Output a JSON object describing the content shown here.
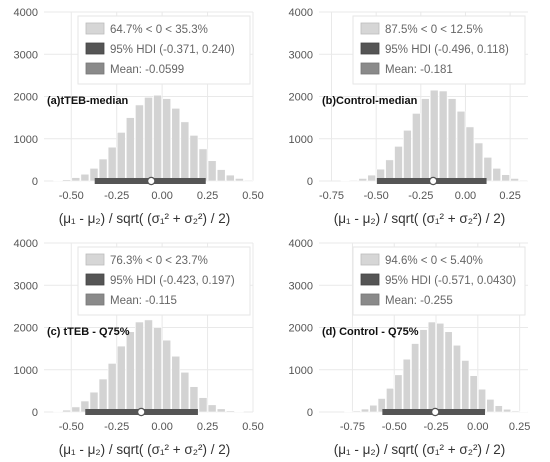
{
  "chart_data": [
    {
      "type": "bar",
      "panel_label": "(a)tTEB-median",
      "xlabel": "(μ₁ - μ₂) / sqrt( (σ₁² + σ₂²) / 2)",
      "ylim": [
        0,
        4000
      ],
      "y_ticks": [
        "0",
        "1000",
        "2000",
        "3000",
        "4000"
      ],
      "xlim": [
        -0.65,
        0.5
      ],
      "x_ticks": [
        -0.5,
        -0.25,
        0.0,
        0.25,
        0.5
      ],
      "x_tick_labels": [
        "-0.50",
        "-0.25",
        "0.00",
        "0.25",
        "0.50"
      ],
      "bin_start": -0.6,
      "bin_width": 0.05,
      "values": [
        10,
        30,
        80,
        160,
        300,
        520,
        800,
        1150,
        1500,
        1800,
        1980,
        2030,
        1950,
        1720,
        1400,
        1080,
        760,
        480,
        270,
        140,
        60,
        20,
        8
      ],
      "hdi": [
        -0.371,
        0.24
      ],
      "mean": -0.0599,
      "legend": [
        "64.7% < 0 < 35.3%",
        "95% HDI (-0.371, 0.240)",
        "Mean: -0.0599"
      ],
      "colors": {
        "bar": "#d3d3d3",
        "hdi": "#555555",
        "mean": "#8a8a8a"
      }
    },
    {
      "type": "bar",
      "panel_label": "(b)Control-median",
      "xlabel": "(μ₁ - μ₂) / sqrt( (σ₁² + σ₂²) / 2)",
      "ylim": [
        0,
        4000
      ],
      "y_ticks": [
        "0",
        "1000",
        "2000",
        "3000",
        "4000"
      ],
      "xlim": [
        -0.82,
        0.35
      ],
      "x_ticks": [
        -0.75,
        -0.5,
        -0.25,
        0.0,
        0.25
      ],
      "x_tick_labels": [
        "-0.75",
        "-0.50",
        "-0.25",
        "0.00",
        "0.25"
      ],
      "bin_start": -0.7,
      "bin_width": 0.05,
      "values": [
        8,
        20,
        60,
        140,
        280,
        500,
        820,
        1200,
        1600,
        1950,
        2150,
        2130,
        1950,
        1650,
        1280,
        900,
        560,
        300,
        150,
        60,
        20,
        8
      ],
      "hdi": [
        -0.496,
        0.118
      ],
      "mean": -0.181,
      "legend": [
        "87.5% < 0 < 12.5%",
        "95% HDI (-0.496, 0.118)",
        "Mean: -0.181"
      ],
      "colors": {
        "bar": "#d3d3d3",
        "hdi": "#555555",
        "mean": "#8a8a8a"
      }
    },
    {
      "type": "bar",
      "panel_label": "(c) tTEB - Q75%",
      "xlabel": "(μ₁ - μ₂) / sqrt( (σ₁² + σ₂²) / 2)",
      "ylim": [
        0,
        4000
      ],
      "y_ticks": [
        "0",
        "1000",
        "2000",
        "3000",
        "4000"
      ],
      "xlim": [
        -0.65,
        0.5
      ],
      "x_ticks": [
        -0.5,
        -0.25,
        0.0,
        0.25,
        0.5
      ],
      "x_tick_labels": [
        "-0.50",
        "-0.25",
        "0.00",
        "0.25",
        "0.50"
      ],
      "bin_start": -0.6,
      "bin_width": 0.05,
      "values": [
        15,
        45,
        120,
        260,
        470,
        780,
        1150,
        1560,
        1900,
        2130,
        2180,
        2000,
        1700,
        1320,
        940,
        600,
        340,
        170,
        75,
        28,
        10
      ],
      "hdi": [
        -0.423,
        0.197
      ],
      "mean": -0.115,
      "legend": [
        "76.3% < 0 < 23.7%",
        "95% HDI (-0.423, 0.197)",
        "Mean: -0.115"
      ],
      "colors": {
        "bar": "#d3d3d3",
        "hdi": "#555555",
        "mean": "#8a8a8a"
      }
    },
    {
      "type": "bar",
      "panel_label": "(d) Control - Q75%",
      "xlabel": "(μ₁ - μ₂) / sqrt( (σ₁² + σ₂²) / 2)",
      "ylim": [
        0,
        4000
      ],
      "y_ticks": [
        "0",
        "1000",
        "2000",
        "3000",
        "4000"
      ],
      "xlim": [
        -0.95,
        0.3
      ],
      "x_ticks": [
        -0.75,
        -0.5,
        -0.25,
        0.0,
        0.25
      ],
      "x_tick_labels": [
        "-0.75",
        "-0.50",
        "-0.25",
        "0.00",
        "0.25"
      ],
      "bin_start": -0.8,
      "bin_width": 0.05,
      "values": [
        8,
        25,
        70,
        160,
        320,
        560,
        880,
        1250,
        1620,
        1950,
        2130,
        2100,
        1900,
        1580,
        1220,
        860,
        540,
        300,
        150,
        65,
        25,
        10
      ],
      "hdi": [
        -0.571,
        0.043
      ],
      "mean": -0.255,
      "legend": [
        "94.6% < 0 < 5.40%",
        "95% HDI (-0.571, 0.0430)",
        "Mean: -0.255"
      ],
      "colors": {
        "bar": "#d3d3d3",
        "hdi": "#555555",
        "mean": "#8a8a8a"
      }
    }
  ]
}
